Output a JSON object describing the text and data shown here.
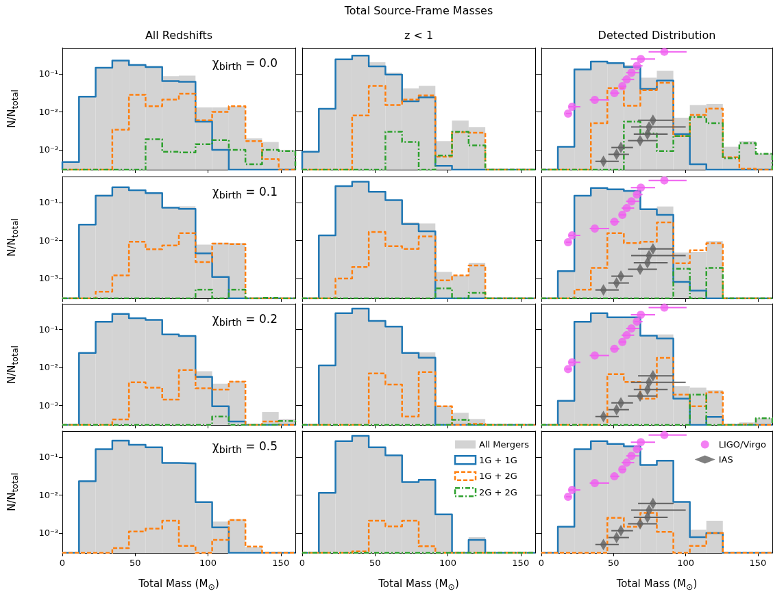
{
  "chart_data": [
    {
      "type": "histogram",
      "title": "All Redshifts",
      "ylabel": "N/N$_{total}$",
      "annotations": [
        "χ$_{birth}$ = 0.0"
      ],
      "bins": [
        0,
        11.43,
        22.86,
        34.29,
        45.71,
        57.14,
        68.57,
        80,
        91.43,
        102.86,
        114.29,
        125.71,
        137.14,
        148.57,
        160
      ],
      "xlim": [
        0,
        160
      ],
      "xticks": [
        0,
        50,
        100,
        150
      ],
      "ylim": [
        0.0003,
        0.48
      ],
      "yticks": [
        {
          "value": 0.001,
          "label": "10⁻³"
        },
        {
          "value": 0.01,
          "label": "10⁻²"
        },
        {
          "value": 0.1,
          "label": "10⁻¹"
        }
      ],
      "log": true,
      "tick_labels": "y",
      "series": [
        {
          "color": "#d3d3d3",
          "values": [
            0.00048,
            0.025,
            0.15,
            0.22,
            0.18,
            0.16,
            0.087,
            0.09,
            0.013,
            0.013,
            0.014,
            0.002,
            0.0016,
            0.001
          ]
        },
        {
          "color": "#1f77b4",
          "line_style": "solid",
          "values": [
            0.00048,
            0.025,
            0.145,
            0.224,
            0.17,
            0.15,
            0.064,
            0.062,
            0.0055,
            0.001,
            null,
            null,
            null,
            null
          ]
        },
        {
          "color": "#ff7f0e",
          "line_style": "dashed",
          "values": [
            null,
            null,
            null,
            0.0034,
            0.028,
            0.014,
            0.021,
            0.03,
            0.006,
            0.01,
            0.014,
            0.0017,
            0.00057,
            null
          ]
        },
        {
          "color": "#2ca02c",
          "line_style": "dotted",
          "values": [
            null,
            null,
            null,
            null,
            null,
            0.0019,
            0.00089,
            0.00085,
            0.0014,
            0.0018,
            0.001,
            0.00042,
            0.001,
            0.00093
          ]
        }
      ]
    },
    {
      "type": "histogram",
      "title": "Total Source-Frame Masses",
      "subtitle": "z < 1",
      "bins": [
        0,
        11.43,
        22.86,
        34.29,
        45.71,
        57.14,
        68.57,
        80,
        91.43,
        102.86,
        114.29,
        125.71,
        137.14,
        148.57,
        160
      ],
      "xlim": [
        0,
        160
      ],
      "xticks": [
        0,
        50,
        100,
        150
      ],
      "ylim": [
        0.0003,
        0.48
      ],
      "yticks": [
        {
          "value": 0.001,
          "label": null
        },
        {
          "value": 0.01,
          "label": null
        },
        {
          "value": 0.1,
          "label": null
        }
      ],
      "log": true,
      "tick_labels": false,
      "series": [
        {
          "color": "#d3d3d3",
          "values": [
            0.00089,
            0.012,
            0.24,
            0.3,
            0.2,
            0.107,
            0.041,
            0.048,
            0.0017,
            0.0059,
            0.0039,
            null,
            null,
            null
          ]
        },
        {
          "color": "#1f77b4",
          "line_style": "solid",
          "values": [
            0.00089,
            0.012,
            0.24,
            0.3,
            0.156,
            0.095,
            0.019,
            0.024,
            0.00038,
            null,
            null,
            null,
            null,
            null
          ]
        },
        {
          "color": "#ff7f0e",
          "line_style": "dashed",
          "values": [
            null,
            null,
            null,
            0.008,
            0.048,
            0.015,
            0.021,
            0.027,
            0.00066,
            0.0029,
            0.0028,
            null,
            null,
            null
          ]
        },
        {
          "color": "#2ca02c",
          "line_style": "dotted",
          "values": [
            null,
            null,
            null,
            null,
            null,
            0.003,
            0.0016,
            null,
            0.00071,
            0.003,
            0.0013,
            null,
            null,
            null
          ]
        }
      ]
    },
    {
      "type": "histogram",
      "title": "Detected Distribution",
      "bins": [
        0,
        11.43,
        22.86,
        34.29,
        45.71,
        57.14,
        68.57,
        80,
        91.43,
        102.86,
        114.29,
        125.71,
        137.14,
        148.57,
        160
      ],
      "xlim": [
        0,
        160
      ],
      "xticks": [
        0,
        50,
        100,
        150
      ],
      "ylim": [
        0.0003,
        0.48
      ],
      "yticks": [
        {
          "value": 0.001,
          "label": null
        },
        {
          "value": 0.01,
          "label": null
        },
        {
          "value": 0.1,
          "label": null
        }
      ],
      "log": true,
      "tick_labels": false,
      "series": [
        {
          "color": "#d3d3d3",
          "values": [
            null,
            0.0012,
            0.13,
            0.21,
            0.2,
            0.17,
            0.079,
            0.12,
            0.007,
            0.015,
            0.016,
            0.0012,
            0.0017,
            0.0008
          ]
        },
        {
          "color": "#1f77b4",
          "line_style": "solid",
          "values": [
            null,
            0.0012,
            0.13,
            0.21,
            0.19,
            0.15,
            0.04,
            0.066,
            0.0026,
            0.00042,
            null,
            null,
            null,
            null
          ]
        },
        {
          "color": "#ff7f0e",
          "line_style": "dashed",
          "values": [
            null,
            null,
            null,
            0.005,
            0.042,
            0.0145,
            0.037,
            0.058,
            0.0023,
            0.0083,
            0.0121,
            0.00064,
            0.00032,
            null
          ]
        },
        {
          "color": "#2ca02c",
          "line_style": "dotted",
          "values": [
            null,
            null,
            null,
            null,
            null,
            0.0055,
            0.0027,
            0.00093,
            0.0023,
            0.0073,
            0.005,
            0.0006,
            0.0015,
            0.00079
          ]
        },
        {
          "type": "scatter",
          "color": "#f060f0",
          "marker": "circle",
          "x": [
            18.5,
            21.3,
            37,
            50.6,
            56.1,
            59.1,
            62.4,
            66.2,
            68.9,
            85.2
          ],
          "values": [
            0.009,
            0.0136,
            0.0206,
            0.031,
            0.047,
            0.071,
            0.107,
            0.162,
            0.246,
            0.38
          ],
          "xerrors": [
            [
              17,
              20.5
            ],
            [
              19,
              27
            ],
            [
              33.5,
              47
            ],
            [
              47.7,
              54
            ],
            [
              54,
              58.8
            ],
            [
              55.6,
              64.3
            ],
            [
              58.8,
              67.8
            ],
            [
              64.3,
              70.1
            ],
            [
              62,
              78.8
            ],
            [
              74.3,
              100.6
            ]
          ]
        },
        {
          "type": "scatter",
          "color": "#606060",
          "marker": "diamond",
          "x": [
            43,
            52.1,
            55.1,
            68.4,
            73.5,
            74.6,
            77.3
          ],
          "values": [
            0.0005,
            0.00076,
            0.00115,
            0.00174,
            0.0026,
            0.004,
            0.006
          ],
          "xerrors": [
            [
              37.4,
              53.6
            ],
            [
              46.4,
              60.7
            ],
            [
              48.5,
              63.5
            ],
            [
              60,
              80.1
            ],
            [
              64,
              87.5
            ],
            [
              62.2,
              100
            ],
            [
              67,
              91.6
            ]
          ]
        }
      ]
    },
    {
      "type": "histogram",
      "ylabel": "N/N$_{total}$",
      "annotations": [
        "χ$_{birth}$ = 0.1"
      ],
      "bins": [
        0,
        11.43,
        22.86,
        34.29,
        45.71,
        57.14,
        68.57,
        80,
        91.43,
        102.86,
        114.29,
        125.71,
        137.14,
        148.57,
        160
      ],
      "xlim": [
        0,
        160
      ],
      "xticks": [
        0,
        50,
        100,
        150
      ],
      "ylim": [
        0.0003,
        0.48
      ],
      "yticks": [
        {
          "value": 0.001,
          "label": "10⁻³"
        },
        {
          "value": 0.01,
          "label": "10⁻²"
        },
        {
          "value": 0.1,
          "label": "10⁻¹"
        }
      ],
      "log": true,
      "tick_labels": "y",
      "series": [
        {
          "color": "#d3d3d3",
          "values": [
            null,
            0.026,
            0.16,
            0.25,
            0.21,
            0.175,
            0.075,
            0.079,
            0.0078,
            0.0087,
            0.0085,
            null,
            0.00031,
            null
          ]
        },
        {
          "color": "#1f77b4",
          "line_style": "solid",
          "values": [
            null,
            0.026,
            0.15,
            0.25,
            0.21,
            0.175,
            0.073,
            0.068,
            0.0046,
            0.0011,
            null,
            null,
            null,
            null
          ]
        },
        {
          "color": "#ff7f0e",
          "line_style": "dashed",
          "values": [
            null,
            null,
            0.00045,
            0.0012,
            0.0093,
            0.0059,
            0.0074,
            0.0156,
            0.0027,
            0.0083,
            0.008,
            null,
            null,
            null
          ]
        },
        {
          "color": "#2ca02c",
          "line_style": "dotted",
          "values": [
            null,
            null,
            null,
            null,
            null,
            null,
            null,
            null,
            0.00051,
            null,
            0.00051,
            null,
            0.00031,
            null
          ]
        }
      ]
    },
    {
      "type": "histogram",
      "bins": [
        0,
        11.43,
        22.86,
        34.29,
        45.71,
        57.14,
        68.57,
        80,
        91.43,
        102.86,
        114.29,
        125.71,
        137.14,
        148.57,
        160
      ],
      "xlim": [
        0,
        160
      ],
      "xticks": [
        0,
        50,
        100,
        150
      ],
      "ylim": [
        0.0003,
        0.48
      ],
      "yticks": [
        {
          "value": 0.001,
          "label": null
        },
        {
          "value": 0.01,
          "label": null
        },
        {
          "value": 0.1,
          "label": null
        }
      ],
      "log": true,
      "tick_labels": false,
      "series": [
        {
          "color": "#d3d3d3",
          "values": [
            null,
            0.0136,
            0.27,
            0.35,
            0.19,
            0.115,
            0.03,
            0.028,
            0.0015,
            0.0012,
            0.0026,
            null,
            null,
            null
          ]
        },
        {
          "color": "#1f77b4",
          "line_style": "solid",
          "values": [
            null,
            0.0136,
            0.27,
            0.35,
            0.19,
            0.115,
            0.027,
            0.0174,
            null,
            null,
            null,
            null,
            null,
            null
          ]
        },
        {
          "color": "#ff7f0e",
          "line_style": "dashed",
          "values": [
            null,
            null,
            0.001,
            0.002,
            0.0167,
            0.0071,
            0.006,
            0.0128,
            0.00089,
            0.0012,
            0.0022,
            null,
            null,
            null
          ]
        },
        {
          "color": "#2ca02c",
          "line_style": "dotted",
          "values": [
            null,
            null,
            null,
            null,
            null,
            null,
            null,
            null,
            0.00055,
            null,
            0.00042,
            null,
            null,
            null
          ]
        }
      ]
    },
    {
      "type": "histogram",
      "bins": [
        0,
        11.43,
        22.86,
        34.29,
        45.71,
        57.14,
        68.57,
        80,
        91.43,
        102.86,
        114.29,
        125.71,
        137.14,
        148.57,
        160
      ],
      "xlim": [
        0,
        160
      ],
      "xticks": [
        0,
        50,
        100,
        150
      ],
      "ylim": [
        0.0003,
        0.48
      ],
      "yticks": [
        {
          "value": 0.001,
          "label": null
        },
        {
          "value": 0.01,
          "label": null
        },
        {
          "value": 0.1,
          "label": null
        }
      ],
      "log": true,
      "tick_labels": false,
      "series": [
        {
          "color": "#d3d3d3",
          "values": [
            null,
            0.00156,
            0.15,
            0.24,
            0.23,
            0.2,
            0.066,
            0.078,
            0.0048,
            0.005,
            0.0097,
            null,
            null,
            null
          ]
        },
        {
          "color": "#1f77b4",
          "line_style": "solid",
          "values": [
            null,
            0.00156,
            0.15,
            0.24,
            0.22,
            0.2,
            0.066,
            0.047,
            0.00081,
            0.00048,
            null,
            null,
            null,
            null
          ]
        },
        {
          "color": "#ff7f0e",
          "line_style": "dashed",
          "values": [
            null,
            null,
            0.00051,
            0.0019,
            0.0156,
            0.0085,
            0.0093,
            0.03,
            0.0025,
            0.0055,
            0.0084,
            null,
            null,
            null
          ]
        },
        {
          "color": "#2ca02c",
          "line_style": "dotted",
          "values": [
            null,
            null,
            null,
            null,
            null,
            null,
            null,
            null,
            0.0018,
            null,
            0.0019,
            null,
            null,
            null
          ]
        },
        {
          "type": "scatter",
          "color": "#f060f0",
          "marker": "circle",
          "x": [
            18.5,
            21.3,
            37,
            50.6,
            56.1,
            59.1,
            62.4,
            66.2,
            68.9,
            85.2
          ],
          "values": [
            0.009,
            0.0136,
            0.0206,
            0.031,
            0.047,
            0.071,
            0.107,
            0.162,
            0.246,
            0.38
          ],
          "xerrors": [
            [
              17,
              20.5
            ],
            [
              19,
              27
            ],
            [
              33.5,
              47
            ],
            [
              47.7,
              54
            ],
            [
              54,
              58.8
            ],
            [
              55.6,
              64.3
            ],
            [
              58.8,
              67.8
            ],
            [
              64.3,
              70.1
            ],
            [
              62,
              78.8
            ],
            [
              74.3,
              100.6
            ]
          ]
        },
        {
          "type": "scatter",
          "color": "#606060",
          "marker": "diamond",
          "x": [
            43,
            52.1,
            55.1,
            68.4,
            73.5,
            74.6,
            77.3
          ],
          "values": [
            0.0005,
            0.00076,
            0.00115,
            0.00174,
            0.0026,
            0.004,
            0.006
          ],
          "xerrors": [
            [
              37.4,
              53.6
            ],
            [
              46.4,
              60.7
            ],
            [
              48.5,
              63.5
            ],
            [
              60,
              80.1
            ],
            [
              64,
              87.5
            ],
            [
              62.2,
              100
            ],
            [
              67,
              91.6
            ]
          ]
        }
      ]
    },
    {
      "type": "histogram",
      "ylabel": "N/N$_{total}$",
      "annotations": [
        "χ$_{birth}$ = 0.2"
      ],
      "bins": [
        0,
        11.43,
        22.86,
        34.29,
        45.71,
        57.14,
        68.57,
        80,
        91.43,
        102.86,
        114.29,
        125.71,
        137.14,
        148.57,
        160
      ],
      "xlim": [
        0,
        160
      ],
      "xticks": [
        0,
        50,
        100,
        150
      ],
      "ylim": [
        0.0003,
        0.48
      ],
      "yticks": [
        {
          "value": 0.001,
          "label": "10⁻³"
        },
        {
          "value": 0.01,
          "label": "10⁻²"
        },
        {
          "value": 0.1,
          "label": "10⁻¹"
        }
      ],
      "log": true,
      "tick_labels": "y",
      "series": [
        {
          "color": "#d3d3d3",
          "values": [
            null,
            0.024,
            0.16,
            0.26,
            0.2,
            0.18,
            0.074,
            0.07,
            0.0079,
            0.0037,
            0.0043,
            null,
            0.00066,
            0.00043
          ]
        },
        {
          "color": "#1f77b4",
          "line_style": "solid",
          "values": [
            null,
            0.024,
            0.16,
            0.26,
            0.2,
            0.18,
            0.074,
            0.068,
            0.0056,
            0.00093,
            0.00037,
            null,
            null,
            null
          ]
        },
        {
          "color": "#ff7f0e",
          "line_style": "dashed",
          "values": [
            null,
            null,
            null,
            0.00042,
            0.004,
            0.0029,
            0.0014,
            0.0085,
            0.0028,
            0.0026,
            0.0042,
            null,
            0.00037,
            null
          ]
        },
        {
          "color": "#2ca02c",
          "line_style": "dotted",
          "values": [
            null,
            null,
            null,
            null,
            null,
            null,
            null,
            null,
            null,
            0.0005,
            null,
            null,
            null,
            0.00038
          ]
        }
      ]
    },
    {
      "type": "histogram",
      "bins": [
        0,
        11.43,
        22.86,
        34.29,
        45.71,
        57.14,
        68.57,
        80,
        91.43,
        102.86,
        114.29,
        125.71,
        137.14,
        148.57,
        160
      ],
      "xlim": [
        0,
        160
      ],
      "xticks": [
        0,
        50,
        100,
        150
      ],
      "ylim": [
        0.0003,
        0.48
      ],
      "yticks": [
        {
          "value": 0.001,
          "label": null
        },
        {
          "value": 0.01,
          "label": null
        },
        {
          "value": 0.1,
          "label": null
        }
      ],
      "log": true,
      "tick_labels": false,
      "series": [
        {
          "color": "#d3d3d3",
          "values": [
            null,
            0.0113,
            0.27,
            0.36,
            0.17,
            0.12,
            0.024,
            0.025,
            0.00097,
            0.00063,
            0.00043,
            null,
            null,
            null
          ]
        },
        {
          "color": "#1f77b4",
          "line_style": "solid",
          "values": [
            null,
            0.0113,
            0.27,
            0.36,
            0.17,
            0.12,
            0.024,
            0.018,
            null,
            null,
            null,
            null,
            null,
            null
          ]
        },
        {
          "color": "#ff7f0e",
          "line_style": "dashed",
          "values": [
            null,
            null,
            null,
            null,
            0.0069,
            0.0035,
            0.0005,
            0.0075,
            0.00093,
            null,
            0.00032,
            null,
            null,
            null
          ]
        },
        {
          "color": "#2ca02c",
          "line_style": "dotted",
          "values": [
            null,
            null,
            null,
            null,
            null,
            null,
            null,
            null,
            null,
            0.00041,
            null,
            null,
            null,
            null
          ]
        }
      ]
    },
    {
      "type": "histogram",
      "bins": [
        0,
        11.43,
        22.86,
        34.29,
        45.71,
        57.14,
        68.57,
        80,
        91.43,
        102.86,
        114.29,
        125.71,
        137.14,
        148.57,
        160
      ],
      "xlim": [
        0,
        160
      ],
      "xticks": [
        0,
        50,
        100,
        150
      ],
      "ylim": [
        0.0003,
        0.48
      ],
      "yticks": [
        {
          "value": 0.001,
          "label": null
        },
        {
          "value": 0.01,
          "label": null
        },
        {
          "value": 0.1,
          "label": null
        }
      ],
      "log": true,
      "tick_labels": false,
      "series": [
        {
          "color": "#d3d3d3",
          "values": [
            null,
            0.0013,
            0.16,
            0.27,
            0.21,
            0.21,
            0.069,
            0.074,
            0.0032,
            0.0029,
            0.0025,
            null,
            0.00035,
            0.00045
          ]
        },
        {
          "color": "#1f77b4",
          "line_style": "solid",
          "values": [
            null,
            0.0013,
            0.16,
            0.27,
            0.21,
            0.21,
            0.069,
            0.058,
            0.0015,
            null,
            0.00049,
            null,
            null,
            null
          ]
        },
        {
          "color": "#ff7f0e",
          "line_style": "dashed",
          "values": [
            null,
            null,
            null,
            null,
            0.0066,
            0.0041,
            0.0015,
            0.0178,
            0.0019,
            0.00093,
            0.0022,
            null,
            0.00031,
            null
          ]
        },
        {
          "color": "#2ca02c",
          "line_style": "dotted",
          "values": [
            null,
            null,
            null,
            null,
            null,
            null,
            null,
            null,
            null,
            0.0019,
            null,
            null,
            null,
            0.00045
          ]
        },
        {
          "type": "scatter",
          "color": "#f060f0",
          "marker": "circle",
          "x": [
            18.5,
            21.3,
            37,
            50.6,
            56.1,
            59.1,
            62.4,
            66.2,
            68.9,
            85.2
          ],
          "values": [
            0.009,
            0.0136,
            0.0206,
            0.031,
            0.047,
            0.071,
            0.107,
            0.162,
            0.246,
            0.38
          ],
          "xerrors": [
            [
              17,
              20.5
            ],
            [
              19,
              27
            ],
            [
              33.5,
              47
            ],
            [
              47.7,
              54
            ],
            [
              54,
              58.8
            ],
            [
              55.6,
              64.3
            ],
            [
              58.8,
              67.8
            ],
            [
              64.3,
              70.1
            ],
            [
              62,
              78.8
            ],
            [
              74.3,
              100.6
            ]
          ]
        },
        {
          "type": "scatter",
          "color": "#606060",
          "marker": "diamond",
          "x": [
            43,
            52.1,
            55.1,
            68.4,
            73.5,
            74.6,
            77.3
          ],
          "values": [
            0.0005,
            0.00076,
            0.00115,
            0.00174,
            0.0026,
            0.004,
            0.006
          ],
          "xerrors": [
            [
              37.4,
              53.6
            ],
            [
              46.4,
              60.7
            ],
            [
              48.5,
              63.5
            ],
            [
              60,
              80.1
            ],
            [
              64,
              87.5
            ],
            [
              62.2,
              100
            ],
            [
              67,
              91.6
            ]
          ]
        }
      ]
    },
    {
      "type": "histogram",
      "ylabel": "N/N$_{total}$",
      "xlabel": "Total Mass (M$_{⊙}$)",
      "annotations": [
        "χ$_{birth}$ = 0.5"
      ],
      "bins": [
        0,
        11.43,
        22.86,
        34.29,
        45.71,
        57.14,
        68.57,
        80,
        91.43,
        102.86,
        114.29,
        125.71,
        137.14,
        148.57,
        160
      ],
      "xlim": [
        0,
        160
      ],
      "xticks": [
        0,
        50,
        100,
        150
      ],
      "ylim": [
        0.0003,
        0.48
      ],
      "yticks": [
        {
          "value": 0.001,
          "label": "10⁻³"
        },
        {
          "value": 0.01,
          "label": "10⁻²"
        },
        {
          "value": 0.1,
          "label": "10⁻¹"
        }
      ],
      "log": true,
      "series": [
        {
          "color": "#d3d3d3",
          "values": [
            null,
            0.023,
            0.16,
            0.27,
            0.21,
            0.18,
            0.07,
            0.068,
            0.0065,
            0.002,
            0.0023,
            0.00043,
            null,
            null
          ]
        },
        {
          "color": "#1f77b4",
          "line_style": "solid",
          "values": [
            null,
            0.023,
            0.16,
            0.27,
            0.21,
            0.18,
            0.07,
            0.068,
            0.0065,
            0.0014,
            null,
            null,
            null,
            null
          ]
        },
        {
          "color": "#ff7f0e",
          "line_style": "dashed",
          "values": [
            null,
            null,
            null,
            0.0004,
            0.0011,
            0.0013,
            0.0021,
            0.00046,
            null,
            0.00066,
            0.0022,
            0.00044,
            null,
            null
          ]
        }
      ]
    },
    {
      "type": "histogram",
      "xlabel": "Total Mass (M$_{⊙}$)",
      "legend": "top right",
      "bins": [
        0,
        11.43,
        22.86,
        34.29,
        45.71,
        57.14,
        68.57,
        80,
        91.43,
        102.86,
        114.29,
        125.71,
        137.14,
        148.57,
        160
      ],
      "xlim": [
        0,
        160
      ],
      "xticks": [
        0,
        50,
        100,
        150
      ],
      "ylim": [
        0.0003,
        0.48
      ],
      "yticks": [
        {
          "value": 0.001,
          "label": null
        },
        {
          "value": 0.01,
          "label": null
        },
        {
          "value": 0.1,
          "label": null
        }
      ],
      "log": true,
      "tick_labels": "x",
      "series": [
        {
          "name": "All Mergers",
          "color": "#d3d3d3",
          "values": [
            null,
            0.0114,
            0.26,
            0.36,
            0.18,
            0.11,
            0.022,
            0.025,
            0.0031,
            null,
            0.00078,
            null,
            null,
            null
          ]
        },
        {
          "name": "1G + 1G",
          "color": "#1f77b4",
          "line_style": "solid",
          "values": [
            null,
            0.0114,
            0.26,
            0.36,
            0.18,
            0.11,
            0.022,
            0.025,
            0.0031,
            null,
            0.00066,
            null,
            null,
            null
          ]
        },
        {
          "name": "1G + 2G",
          "color": "#ff7f0e",
          "line_style": "dashed",
          "values": [
            null,
            null,
            null,
            0.00033,
            0.0021,
            0.0015,
            0.0021,
            0.00045,
            null,
            null,
            null,
            null,
            null,
            null
          ]
        },
        {
          "name": "2G + 2G",
          "color": "#2ca02c",
          "line_style": "dotted",
          "values": [
            null,
            null,
            null,
            null,
            null,
            null,
            null,
            null,
            null,
            null,
            null,
            null,
            null,
            null
          ]
        }
      ]
    },
    {
      "type": "histogram",
      "xlabel": "Total Mass (M$_{⊙}$)",
      "legend": "top right",
      "bins": [
        0,
        11.43,
        22.86,
        34.29,
        45.71,
        57.14,
        68.57,
        80,
        91.43,
        102.86,
        114.29,
        125.71,
        137.14,
        148.57,
        160
      ],
      "xlim": [
        0,
        160
      ],
      "xticks": [
        0,
        50,
        100,
        150
      ],
      "ylim": [
        0.0003,
        0.48
      ],
      "yticks": [
        {
          "value": 0.001,
          "label": null
        },
        {
          "value": 0.01,
          "label": null
        },
        {
          "value": 0.1,
          "label": null
        }
      ],
      "log": true,
      "tick_labels": "x",
      "series": [
        {
          "color": "#d3d3d3",
          "values": [
            null,
            0.00146,
            0.16,
            0.26,
            0.22,
            0.19,
            0.062,
            0.08,
            0.0066,
            0.00123,
            0.0021,
            null,
            null,
            null
          ]
        },
        {
          "color": "#1f77b4",
          "line_style": "solid",
          "values": [
            null,
            0.00146,
            0.16,
            0.26,
            0.22,
            0.19,
            0.062,
            0.08,
            0.0066,
            0.00078,
            0.001,
            null,
            null,
            null
          ]
        },
        {
          "color": "#ff7f0e",
          "line_style": "dashed",
          "values": [
            null,
            null,
            null,
            null,
            0.0025,
            0.00146,
            0.0034,
            0.00107,
            null,
            0.00046,
            0.001,
            null,
            null,
            null
          ]
        },
        {
          "type": "scatter",
          "name": "LIGO/Virgo",
          "color": "#f060f0",
          "marker": "circle",
          "x": [
            18.5,
            21.3,
            37,
            50.6,
            56.1,
            59.1,
            62.4,
            66.2,
            68.9,
            85.2
          ],
          "values": [
            0.009,
            0.0136,
            0.0206,
            0.031,
            0.047,
            0.071,
            0.107,
            0.162,
            0.246,
            0.38
          ],
          "xerrors": [
            [
              17,
              20.5
            ],
            [
              19,
              27
            ],
            [
              33.5,
              47
            ],
            [
              47.7,
              54
            ],
            [
              54,
              58.8
            ],
            [
              55.6,
              64.3
            ],
            [
              58.8,
              67.8
            ],
            [
              64.3,
              70.1
            ],
            [
              62,
              78.8
            ],
            [
              74.3,
              100.6
            ]
          ]
        },
        {
          "type": "scatter",
          "name": "IAS",
          "color": "#606060",
          "marker": "diamond",
          "x": [
            43,
            52.1,
            55.1,
            68.4,
            73.5,
            74.6,
            77.3
          ],
          "values": [
            0.0005,
            0.00076,
            0.00115,
            0.00174,
            0.0026,
            0.004,
            0.006
          ],
          "xerrors": [
            [
              37.4,
              53.6
            ],
            [
              46.4,
              60.7
            ],
            [
              48.5,
              63.5
            ],
            [
              60,
              80.1
            ],
            [
              64,
              87.5
            ],
            [
              62.2,
              100
            ],
            [
              67,
              91.6
            ]
          ]
        }
      ]
    }
  ]
}
